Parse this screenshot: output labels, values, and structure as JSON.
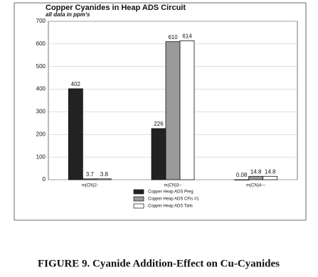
{
  "chart_data": {
    "type": "bar",
    "title": "Copper Cyanides in Heap ADS Circuit",
    "subtitle": "all data in ppm's",
    "categories": [
      "m(CN)2-",
      "m(CN)3--",
      "m(CN)4---"
    ],
    "series": [
      {
        "name": "Copper Heap ADS Preg",
        "color": "#222222",
        "values": [
          402,
          226,
          0.08
        ]
      },
      {
        "name": "Copper Heap ADS CFis #1",
        "color": "#9a9a9a",
        "values": [
          3.7,
          610,
          14.8
        ]
      },
      {
        "name": "Copper Heap ADS Tails",
        "color": "#ffffff",
        "values": [
          3.8,
          614,
          14.8
        ]
      }
    ],
    "ylim": [
      0,
      700
    ],
    "yticks": [
      0,
      100,
      200,
      300,
      400,
      500,
      600,
      700
    ],
    "grid": true,
    "caption": "FIGURE 9. Cyanide Addition-Effect on Cu-Cyanides"
  }
}
